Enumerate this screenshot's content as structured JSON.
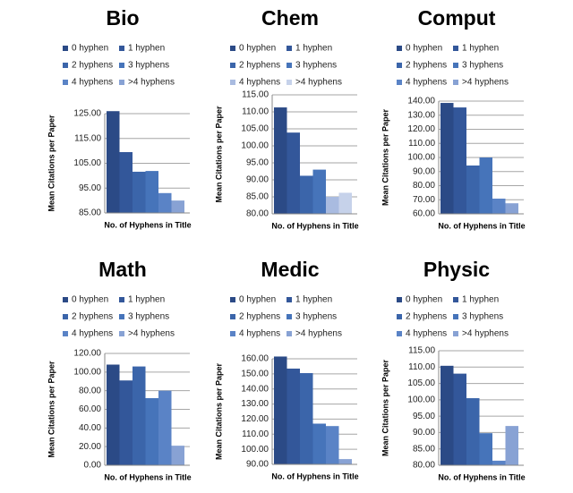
{
  "chart_data": [
    {
      "type": "bar",
      "title": "Bio",
      "ylabel": "Mean Citations per Paper",
      "xlabel": "No. of Hyphens in Title",
      "series": [
        {
          "name": "0 hyphen",
          "color": "#2b4a86",
          "values": [
            126
          ]
        },
        {
          "name": "1 hyphen",
          "color": "#33579a",
          "values": [
            109.5
          ]
        },
        {
          "name": "2 hyphens",
          "color": "#3b65aa",
          "values": [
            101.6
          ]
        },
        {
          "name": "3 hyphens",
          "color": "#4674ba",
          "values": [
            101.9
          ]
        },
        {
          "name": "4 hyphens",
          "color": "#5a83c6",
          "values": [
            93
          ]
        },
        {
          "name": ">4 hyphens",
          "color": "#88a2d4",
          "values": [
            90
          ]
        }
      ],
      "ylim": [
        85,
        125
      ],
      "yticks": [
        {
          "value": 85,
          "label": "85.00"
        },
        {
          "value": 95,
          "label": "95.00"
        },
        {
          "value": 105,
          "label": "105.00"
        },
        {
          "value": 115,
          "label": "115.00"
        },
        {
          "value": 125,
          "label": "125.00"
        }
      ],
      "grid": true
    },
    {
      "type": "bar",
      "title": "Chem",
      "ylabel": "Mean Citations per Paper",
      "xlabel": "No. of Hyphens in Title",
      "series": [
        {
          "name": "0 hyphen",
          "color": "#2b4a86",
          "values": [
            111.3
          ]
        },
        {
          "name": "1 hyphen",
          "color": "#33579a",
          "values": [
            103.9
          ]
        },
        {
          "name": "2 hyphens",
          "color": "#3b65aa",
          "values": [
            91.2
          ]
        },
        {
          "name": "3 hyphens",
          "color": "#4674ba",
          "values": [
            93
          ]
        },
        {
          "name": "4 hyphens",
          "color": "#a9bbe0",
          "values": [
            85
          ]
        },
        {
          "name": ">4 hyphens",
          "color": "#c6d2ea",
          "values": [
            86.2
          ]
        }
      ],
      "ylim": [
        80,
        115
      ],
      "yticks": [
        {
          "value": 80,
          "label": "80.00"
        },
        {
          "value": 85,
          "label": "85.00"
        },
        {
          "value": 90,
          "label": "90.00"
        },
        {
          "value": 95,
          "label": "95.00"
        },
        {
          "value": 100,
          "label": "100.00"
        },
        {
          "value": 105,
          "label": "105.00"
        },
        {
          "value": 110,
          "label": "110.00"
        },
        {
          "value": 115,
          "label": "115.00"
        }
      ],
      "grid": true
    },
    {
      "type": "bar",
      "title": "Comput",
      "ylabel": "Mean Citations per Paper",
      "xlabel": "No. of Hyphens in Title",
      "series": [
        {
          "name": "0 hyphen",
          "color": "#2b4a86",
          "values": [
            138.7
          ]
        },
        {
          "name": "1 hyphen",
          "color": "#33579a",
          "values": [
            135.5
          ]
        },
        {
          "name": "2 hyphens",
          "color": "#3b65aa",
          "values": [
            94.3
          ]
        },
        {
          "name": "3 hyphens",
          "color": "#4674ba",
          "values": [
            100
          ]
        },
        {
          "name": "4 hyphens",
          "color": "#5a83c6",
          "values": [
            70.8
          ]
        },
        {
          "name": ">4 hyphens",
          "color": "#88a2d4",
          "values": [
            67.5
          ]
        }
      ],
      "ylim": [
        60,
        140
      ],
      "yticks": [
        {
          "value": 60,
          "label": "60.00"
        },
        {
          "value": 70,
          "label": "70.00"
        },
        {
          "value": 80,
          "label": "80.00"
        },
        {
          "value": 90,
          "label": "90.00"
        },
        {
          "value": 100,
          "label": "100.00"
        },
        {
          "value": 110,
          "label": "110.00"
        },
        {
          "value": 120,
          "label": "120.00"
        },
        {
          "value": 130,
          "label": "130.00"
        },
        {
          "value": 140,
          "label": "140.00"
        }
      ],
      "grid": true
    },
    {
      "type": "bar",
      "title": "Math",
      "ylabel": "Mean Citations per Paper",
      "xlabel": "No. of Hyphens in Title",
      "series": [
        {
          "name": "0 hyphen",
          "color": "#2b4a86",
          "values": [
            108
          ]
        },
        {
          "name": "1 hyphen",
          "color": "#33579a",
          "values": [
            91
          ]
        },
        {
          "name": "2 hyphens",
          "color": "#3b65aa",
          "values": [
            106
          ]
        },
        {
          "name": "3 hyphens",
          "color": "#4674ba",
          "values": [
            72
          ]
        },
        {
          "name": "4 hyphens",
          "color": "#5a83c6",
          "values": [
            80
          ]
        },
        {
          "name": ">4 hyphens",
          "color": "#88a2d4",
          "values": [
            21
          ]
        }
      ],
      "ylim": [
        0,
        120
      ],
      "yticks": [
        {
          "value": 0,
          "label": "0.00"
        },
        {
          "value": 20,
          "label": "20.00"
        },
        {
          "value": 40,
          "label": "40.00"
        },
        {
          "value": 60,
          "label": "60.00"
        },
        {
          "value": 80,
          "label": "80.00"
        },
        {
          "value": 100,
          "label": "100.00"
        },
        {
          "value": 120,
          "label": "120.00"
        }
      ],
      "grid": true
    },
    {
      "type": "bar",
      "title": "Medic",
      "ylabel": "Mean Citations per Paper",
      "xlabel": "No. of Hyphens in Title",
      "series": [
        {
          "name": "0 hyphen",
          "color": "#2b4a86",
          "values": [
            161.5
          ]
        },
        {
          "name": "1 hyphen",
          "color": "#33579a",
          "values": [
            153.5
          ]
        },
        {
          "name": "2 hyphens",
          "color": "#3b65aa",
          "values": [
            150.5
          ]
        },
        {
          "name": "3 hyphens",
          "color": "#4674ba",
          "values": [
            117
          ]
        },
        {
          "name": "4 hyphens",
          "color": "#5a83c6",
          "values": [
            115.4
          ]
        },
        {
          "name": ">4 hyphens",
          "color": "#88a2d4",
          "values": [
            93.5
          ]
        }
      ],
      "ylim": [
        90,
        160
      ],
      "yticks": [
        {
          "value": 90,
          "label": "90.00"
        },
        {
          "value": 100,
          "label": "100.00"
        },
        {
          "value": 110,
          "label": "110.00"
        },
        {
          "value": 120,
          "label": "120.00"
        },
        {
          "value": 130,
          "label": "130.00"
        },
        {
          "value": 140,
          "label": "140.00"
        },
        {
          "value": 150,
          "label": "150.00"
        },
        {
          "value": 160,
          "label": "160.00"
        }
      ],
      "grid": true
    },
    {
      "type": "bar",
      "title": "Physic",
      "ylabel": "Mean Citations per Paper",
      "xlabel": "No. of Hyphens in Title",
      "series": [
        {
          "name": "0 hyphen",
          "color": "#2b4a86",
          "values": [
            110.4
          ]
        },
        {
          "name": "1 hyphen",
          "color": "#33579a",
          "values": [
            108
          ]
        },
        {
          "name": "2 hyphens",
          "color": "#3b65aa",
          "values": [
            100.5
          ]
        },
        {
          "name": "3 hyphens",
          "color": "#4674ba",
          "values": [
            89.8
          ]
        },
        {
          "name": "4 hyphens",
          "color": "#5a83c6",
          "values": [
            81.4
          ]
        },
        {
          "name": ">4 hyphens",
          "color": "#88a2d4",
          "values": [
            92
          ]
        }
      ],
      "ylim": [
        80,
        115
      ],
      "yticks": [
        {
          "value": 80,
          "label": "80.00"
        },
        {
          "value": 85,
          "label": "85.00"
        },
        {
          "value": 90,
          "label": "90.00"
        },
        {
          "value": 95,
          "label": "95.00"
        },
        {
          "value": 100,
          "label": "100.00"
        },
        {
          "value": 105,
          "label": "105.00"
        },
        {
          "value": 110,
          "label": "110.00"
        },
        {
          "value": 115,
          "label": "115.00"
        }
      ],
      "grid": true
    }
  ]
}
